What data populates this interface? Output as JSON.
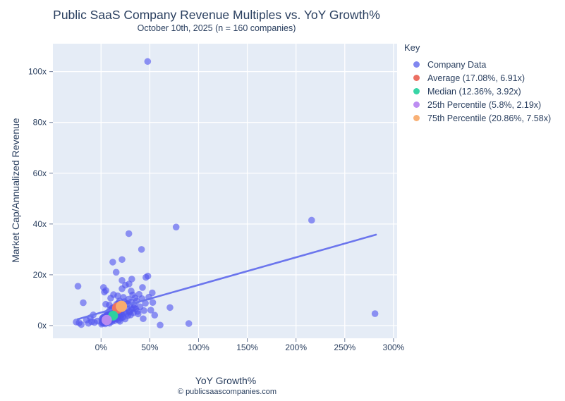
{
  "title": "Public SaaS Company Revenue Multiples vs. YoY Growth%",
  "subtitle": "October 10th, 2025 (n = 160 companies)",
  "footer": "© publicsaascompanies.com",
  "x_axis": {
    "label": "YoY Growth%",
    "tick_labels": [
      "0%",
      "50%",
      "100%",
      "150%",
      "200%",
      "250%",
      "300%"
    ],
    "tick_values": [
      0,
      50,
      100,
      150,
      200,
      250,
      300
    ]
  },
  "y_axis": {
    "label": "Market Cap/Annualized Revenue",
    "tick_labels": [
      "0x",
      "20x",
      "40x",
      "60x",
      "80x",
      "100x"
    ],
    "tick_values": [
      0,
      20,
      40,
      60,
      80,
      100
    ]
  },
  "legend": {
    "title": "Key",
    "items": [
      {
        "label": "Company Data",
        "color": "#8187f0"
      },
      {
        "label": "Average (17.08%, 6.91x)",
        "color": "#ec7063"
      },
      {
        "label": "Median (12.36%, 3.92x)",
        "color": "#38d5a6"
      },
      {
        "label": "25th Percentile (5.8%, 2.19x)",
        "color": "#bd8ef2"
      },
      {
        "label": "75th Percentile (20.86%, 7.58x)",
        "color": "#f9b176"
      }
    ]
  },
  "colors": {
    "text": "#2a3f5f",
    "plot_background": "#e5ecf6",
    "gridline": "#ffffff",
    "company_dot": "#5356ef",
    "trend_line": "#6b75ed",
    "average": "#ec7063",
    "median": "#2fd0a0",
    "p25": "#b98af0",
    "p75": "#f9ab6e"
  },
  "chart_data": {
    "type": "scatter",
    "title": "Public SaaS Company Revenue Multiples vs. YoY Growth%",
    "subtitle": "October 10th, 2025 (n = 160 companies)",
    "xlabel": "YoY Growth%",
    "ylabel": "Market Cap/Annualized Revenue",
    "xlim": [
      -49.4,
      303.7
    ],
    "ylim": [
      -5,
      111
    ],
    "grid": true,
    "legend_position": "top-right",
    "series": [
      {
        "name": "Company Data",
        "marker_radius": 4.8,
        "opacity": 0.62,
        "points": [
          [
            47.8,
            104
          ],
          [
            216,
            41.5
          ],
          [
            77,
            38.8
          ],
          [
            28.5,
            36.2
          ],
          [
            41.5,
            30
          ],
          [
            21.5,
            26
          ],
          [
            12,
            25
          ],
          [
            15.5,
            21
          ],
          [
            48,
            19.5
          ],
          [
            46,
            19
          ],
          [
            31.5,
            18.3
          ],
          [
            21.5,
            17.8
          ],
          [
            25,
            15.9
          ],
          [
            28.7,
            16.4
          ],
          [
            -23.7,
            15.5
          ],
          [
            2.5,
            15
          ],
          [
            42.5,
            15
          ],
          [
            21.5,
            14.5
          ],
          [
            30.9,
            13.6
          ],
          [
            52.5,
            12.9
          ],
          [
            12.8,
            12.2
          ],
          [
            17.1,
            11.7
          ],
          [
            9.9,
            10.8
          ],
          [
            22.9,
            11.1
          ],
          [
            -18.3,
            9
          ],
          [
            4.8,
            8.4
          ],
          [
            8.5,
            8.1
          ],
          [
            24,
            9.4
          ],
          [
            27,
            8.7
          ],
          [
            19,
            9.7
          ],
          [
            33.8,
            7
          ],
          [
            37.4,
            5.6
          ],
          [
            29.5,
            5.3
          ],
          [
            70.7,
            7.1
          ],
          [
            43.2,
            2.7
          ],
          [
            90,
            0.8
          ],
          [
            60.6,
            0.2
          ],
          [
            281,
            4.7
          ],
          [
            -25.5,
            1.4
          ],
          [
            -22.5,
            1.1
          ],
          [
            -20.3,
            0.4
          ],
          [
            -13,
            0.9
          ],
          [
            -9.6,
            1.5
          ],
          [
            -6.7,
            1.2
          ],
          [
            -3.8,
            1.8
          ],
          [
            -8,
            4.2
          ],
          [
            -15,
            2.2
          ],
          [
            -11,
            3.1
          ],
          [
            5,
            13.8
          ],
          [
            3.4,
            13.2
          ],
          [
            0.5,
            0.6
          ],
          [
            1,
            1.2
          ],
          [
            1.5,
            2.1
          ],
          [
            2,
            0.9
          ],
          [
            2.4,
            1.6
          ],
          [
            2.8,
            2.4
          ],
          [
            3.2,
            1.1
          ],
          [
            3.6,
            2.8
          ],
          [
            4,
            1.5
          ],
          [
            4.4,
            0.7
          ],
          [
            4.8,
            2.2
          ],
          [
            5.2,
            1.8
          ],
          [
            0.8,
            2.6
          ],
          [
            1.8,
            3.1
          ],
          [
            2.6,
            3.4
          ],
          [
            3.8,
            3.6
          ],
          [
            4.6,
            3.2
          ],
          [
            5.5,
            2.6
          ],
          [
            5.8,
            1.2
          ],
          [
            6.1,
            2.3
          ],
          [
            6.4,
            3.8
          ],
          [
            6.8,
            1.7
          ],
          [
            7.1,
            2.9
          ],
          [
            7.4,
            4.2
          ],
          [
            7.8,
            1.4
          ],
          [
            8.1,
            3.3
          ],
          [
            8.4,
            2.1
          ],
          [
            8.8,
            4.6
          ],
          [
            9.1,
            1.9
          ],
          [
            9.4,
            3.1
          ],
          [
            9.7,
            2.5
          ],
          [
            10,
            4.1
          ],
          [
            6.6,
            5
          ],
          [
            7.6,
            5.3
          ],
          [
            8.6,
            0.9
          ],
          [
            9.9,
            5.6
          ],
          [
            5.9,
            4.4
          ],
          [
            9.2,
            6.2
          ],
          [
            10.3,
            2.2
          ],
          [
            10.6,
            3.5
          ],
          [
            10.9,
            4.8
          ],
          [
            11.2,
            1.6
          ],
          [
            11.5,
            2.9
          ],
          [
            11.8,
            5.2
          ],
          [
            12.1,
            3.7
          ],
          [
            12.4,
            4.3
          ],
          [
            12.7,
            2.4
          ],
          [
            13,
            5.8
          ],
          [
            13.3,
            3.2
          ],
          [
            13.6,
            4.6
          ],
          [
            13.9,
            1.9
          ],
          [
            14.2,
            6.3
          ],
          [
            14.5,
            3.9
          ],
          [
            14.8,
            5.1
          ],
          [
            11,
            6.8
          ],
          [
            12.9,
            7.2
          ],
          [
            13.8,
            2.7
          ],
          [
            14.9,
            4.4
          ],
          [
            15.2,
            3.4
          ],
          [
            15.6,
            5.5
          ],
          [
            16,
            2.6
          ],
          [
            16.4,
            4.7
          ],
          [
            16.8,
            6.6
          ],
          [
            17.2,
            3.1
          ],
          [
            17.6,
            5.9
          ],
          [
            18,
            2.2
          ],
          [
            18.4,
            7.4
          ],
          [
            18.8,
            4.1
          ],
          [
            19.2,
            6.1
          ],
          [
            19.6,
            3.6
          ],
          [
            20,
            7.8
          ],
          [
            20.4,
            5.2
          ],
          [
            20.8,
            2.9
          ],
          [
            15.9,
            8.4
          ],
          [
            17.9,
            8.9
          ],
          [
            19.4,
            1.7
          ],
          [
            20.6,
            6.7
          ],
          [
            16.6,
            7.1
          ],
          [
            21.2,
            4.4
          ],
          [
            21.9,
            6.2
          ],
          [
            22.6,
            3.3
          ],
          [
            23.3,
            7.7
          ],
          [
            24,
            5.1
          ],
          [
            24.7,
            2.6
          ],
          [
            25.4,
            8.6
          ],
          [
            26.1,
            4.8
          ],
          [
            26.8,
            6.9
          ],
          [
            27.5,
            3.9
          ],
          [
            28.2,
            10.4
          ],
          [
            28.9,
            5.6
          ],
          [
            29.6,
            7.9
          ],
          [
            30.3,
            4.2
          ],
          [
            31,
            9.3
          ],
          [
            31.7,
            6.4
          ],
          [
            32.4,
            12.1
          ],
          [
            33.1,
            5
          ],
          [
            34,
            8.1
          ],
          [
            34.8,
            10.9
          ],
          [
            35.5,
            6.6
          ],
          [
            36.5,
            9.7
          ],
          [
            38,
            4.6
          ],
          [
            39,
            12.3
          ],
          [
            40,
            7.4
          ],
          [
            42,
            10.6
          ],
          [
            44,
            5.9
          ],
          [
            45.5,
            8.8
          ],
          [
            49,
            11.2
          ],
          [
            51,
            6.1
          ],
          [
            53,
            9.1
          ],
          [
            55,
            4.1
          ]
        ]
      },
      {
        "name": "Average",
        "marker_radius": 8,
        "opacity": 1,
        "points": [
          [
            17.08,
            6.91
          ]
        ]
      },
      {
        "name": "Median",
        "marker_radius": 7,
        "opacity": 1,
        "points": [
          [
            12.36,
            3.92
          ]
        ]
      },
      {
        "name": "25th Percentile",
        "marker_radius": 7.3,
        "opacity": 1,
        "points": [
          [
            5.8,
            2.19
          ]
        ]
      },
      {
        "name": "75th Percentile",
        "marker_radius": 8,
        "opacity": 1,
        "points": [
          [
            20.86,
            7.58
          ]
        ]
      }
    ],
    "trendline": {
      "from": [
        -24.1,
        2.5
      ],
      "to": [
        282,
        35.8
      ]
    }
  }
}
